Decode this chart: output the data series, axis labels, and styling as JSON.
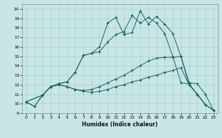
{
  "xlabel": "Humidex (Indice chaleur)",
  "background_color": "#c8e6e6",
  "grid_color": "#aacccc",
  "line_color": "#1a6060",
  "xlim": [
    -0.5,
    23.5
  ],
  "ylim": [
    9.0,
    20.5
  ],
  "yticks": [
    9,
    10,
    11,
    12,
    13,
    14,
    15,
    16,
    17,
    18,
    19,
    20
  ],
  "xticks": [
    0,
    1,
    2,
    3,
    4,
    5,
    6,
    7,
    8,
    9,
    10,
    11,
    12,
    13,
    14,
    15,
    16,
    17,
    18,
    19,
    20,
    21,
    22,
    23
  ],
  "line1_x": [
    0,
    1,
    2,
    3,
    4,
    5,
    6,
    7,
    8,
    9,
    10,
    11,
    12,
    13,
    14,
    15,
    16,
    17,
    18,
    19,
    20,
    21,
    22,
    23
  ],
  "line1_y": [
    10.2,
    9.7,
    10.9,
    11.8,
    12.0,
    11.8,
    11.5,
    11.3,
    11.2,
    11.3,
    11.5,
    11.8,
    12.0,
    12.3,
    12.5,
    12.8,
    13.0,
    13.3,
    13.5,
    13.8,
    12.0,
    11.0,
    9.9,
    9.3
  ],
  "line2_x": [
    0,
    1,
    2,
    3,
    4,
    5,
    6,
    7,
    8,
    9,
    10,
    11,
    12,
    13,
    14,
    15,
    16,
    17,
    18,
    19,
    20,
    21,
    22,
    23
  ],
  "line2_y": [
    10.2,
    9.7,
    10.9,
    11.8,
    12.0,
    11.8,
    11.5,
    11.4,
    11.5,
    11.8,
    12.2,
    12.6,
    13.0,
    13.5,
    14.0,
    14.5,
    14.8,
    14.9,
    14.9,
    15.0,
    12.0,
    11.0,
    9.9,
    9.3
  ],
  "line3_x": [
    0,
    2,
    3,
    4,
    5,
    6,
    7,
    8,
    9,
    10,
    11,
    12,
    13,
    14,
    15,
    16,
    17,
    18,
    19,
    20,
    21,
    22,
    23
  ],
  "line3_y": [
    10.2,
    10.9,
    11.8,
    12.1,
    12.3,
    13.3,
    15.1,
    15.3,
    16.0,
    18.5,
    19.1,
    17.3,
    17.5,
    19.8,
    18.4,
    19.2,
    18.4,
    17.4,
    15.0,
    12.2,
    12.1,
    11.0,
    9.3
  ],
  "line4_x": [
    0,
    2,
    3,
    4,
    5,
    6,
    7,
    8,
    9,
    10,
    11,
    12,
    13,
    14,
    15,
    16,
    17,
    18,
    19,
    20,
    21,
    22,
    23
  ],
  "line4_y": [
    10.2,
    10.9,
    11.8,
    12.1,
    12.3,
    13.3,
    15.1,
    15.3,
    15.5,
    16.5,
    17.3,
    17.6,
    19.3,
    18.5,
    19.1,
    18.5,
    17.4,
    15.0,
    12.2,
    12.1,
    11.0,
    9.9,
    9.3
  ]
}
